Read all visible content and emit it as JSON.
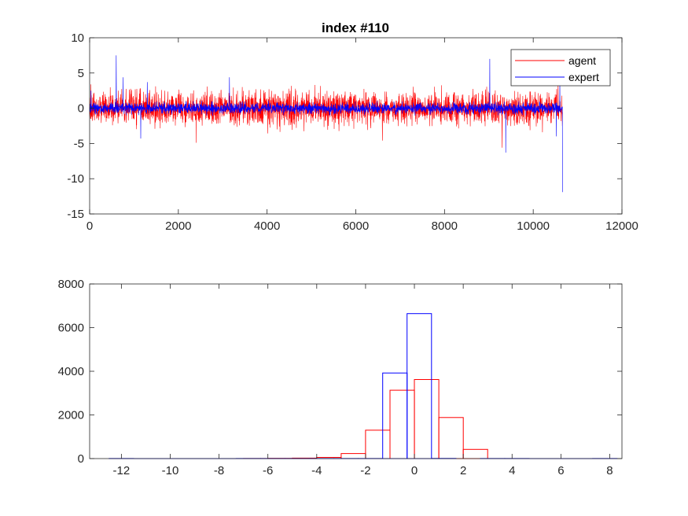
{
  "chart_data": [
    {
      "type": "line",
      "title": "index #110",
      "xlabel": "",
      "ylabel": "",
      "xlim": [
        0,
        12000
      ],
      "ylim": [
        -15,
        10
      ],
      "xticks": [
        0,
        2000,
        4000,
        6000,
        8000,
        10000,
        12000
      ],
      "yticks": [
        -15,
        -10,
        -5,
        0,
        5,
        10
      ],
      "legend_position": "top-right",
      "grid": false,
      "n_points": 10660,
      "series": [
        {
          "name": "agent",
          "color": "#ff0000",
          "noise_band": [
            -3,
            3
          ],
          "spikes": [
            [
              2400,
              -4.9
            ],
            [
              6600,
              -4.6
            ],
            [
              9300,
              -5.6
            ],
            [
              10560,
              3.8
            ]
          ]
        },
        {
          "name": "expert",
          "color": "#0000ff",
          "noise_band": [
            -1,
            1
          ],
          "spikes": [
            [
              30,
              2.5
            ],
            [
              600,
              7.5
            ],
            [
              750,
              4.4
            ],
            [
              1150,
              -4.3
            ],
            [
              1300,
              3.7
            ],
            [
              3150,
              4.4
            ],
            [
              9020,
              7.0
            ],
            [
              9380,
              -6.3
            ],
            [
              10520,
              -4.0
            ],
            [
              10600,
              4.0
            ],
            [
              10660,
              -11.9
            ]
          ]
        }
      ]
    },
    {
      "type": "bar",
      "xlim": [
        -13.3,
        8.5
      ],
      "ylim": [
        0,
        8000
      ],
      "xticks": [
        -12,
        -10,
        -8,
        -6,
        -4,
        -2,
        0,
        2,
        4,
        6,
        8
      ],
      "yticks": [
        0,
        2000,
        4000,
        6000,
        8000
      ],
      "grid": false,
      "histogram": true,
      "series": [
        {
          "name": "agent",
          "color": "#ff0000",
          "bin_edges": [
            -7,
            -6,
            -5,
            -4,
            -3,
            -2,
            -1,
            0,
            1,
            2,
            3
          ],
          "values": [
            2,
            12,
            20,
            55,
            230,
            1300,
            3130,
            3620,
            1880,
            420
          ]
        },
        {
          "name": "expert",
          "color": "#0000ff",
          "bin_edges": [
            -12.5,
            -11.5,
            -7.3,
            -6.3,
            -5.3,
            -4.3,
            -3.3,
            -2.3,
            -1.3,
            -0.3,
            0.7,
            1.7,
            2.7,
            3.7,
            4.7,
            7.3,
            8.3
          ],
          "values": [
            3,
            0,
            2,
            2,
            4,
            3,
            2,
            4,
            3920,
            6640,
            8,
            0,
            3,
            2,
            0,
            3
          ],
          "zero_segments": [
            [
              -11.5,
              -7.3
            ],
            [
              4.7,
              7.3
            ]
          ]
        }
      ]
    }
  ]
}
